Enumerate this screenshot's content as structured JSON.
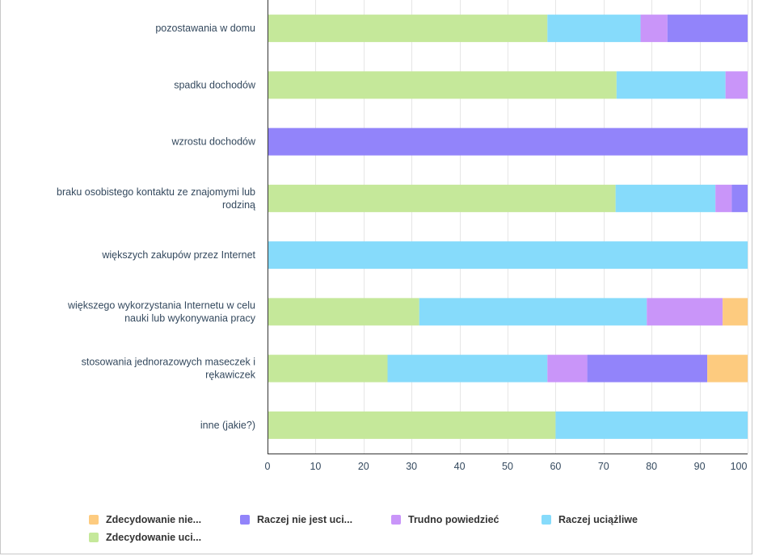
{
  "chart_data": {
    "type": "bar",
    "orientation": "horizontal",
    "stacked": true,
    "categories": [
      "pozostawania w domu",
      "spadku dochodów",
      "wzrostu dochodów",
      "braku osobistego kontaktu ze znajomymi lub rodziną",
      "większych zakupów przez Internet",
      "większego wykorzystania Internetu w celu nauki lub wykonywania pracy",
      "stosowania jednorazowych maseczek i rękawiczek",
      "inne (jakie?)"
    ],
    "category_lines": [
      [
        "pozostawania w domu"
      ],
      [
        "spadku dochodów"
      ],
      [
        "wzrostu dochodów"
      ],
      [
        "braku osobistego kontaktu ze znajomymi lub",
        "rodziną"
      ],
      [
        "większych zakupów przez Internet"
      ],
      [
        "większego wykorzystania Internetu w celu",
        "nauki lub wykonywania pracy"
      ],
      [
        "stosowania jednorazowych maseczek i",
        "rękawiczek"
      ],
      [
        "inne (jakie?)"
      ]
    ],
    "series": [
      {
        "name": "Zdecydowanie uci...",
        "color": "#c5e89a",
        "values": [
          58.3,
          72.7,
          0,
          72.5,
          0,
          31.6,
          25.0,
          60.0
        ]
      },
      {
        "name": "Raczej uciążliwe",
        "color": "#86dbfb",
        "values": [
          19.4,
          22.7,
          0,
          20.8,
          100,
          47.4,
          33.3,
          40.0
        ]
      },
      {
        "name": "Trudno powiedzieć",
        "color": "#c995f9",
        "values": [
          5.6,
          4.6,
          0,
          3.4,
          0,
          15.8,
          8.3,
          0
        ]
      },
      {
        "name": "Raczej nie jest uci...",
        "color": "#9284fa",
        "values": [
          16.7,
          0,
          100,
          3.3,
          0,
          0,
          25.0,
          0
        ]
      },
      {
        "name": "Zdecydowanie nie...",
        "color": "#fdcb7f",
        "values": [
          0,
          0,
          0,
          0,
          0,
          5.2,
          8.4,
          0
        ]
      }
    ],
    "xlim": [
      0,
      100
    ],
    "xticks": [
      "0",
      "10",
      "20",
      "30",
      "40",
      "50",
      "60",
      "70",
      "80",
      "90",
      "100"
    ],
    "grid": true,
    "legend_position": "bottom",
    "legend_order": [
      "Zdecydowanie nie...",
      "Raczej nie jest uci...",
      "Trudno powiedzieć",
      "Raczej uciążliwe",
      "Zdecydowanie uci..."
    ],
    "title": "",
    "xlabel": "",
    "ylabel": ""
  }
}
